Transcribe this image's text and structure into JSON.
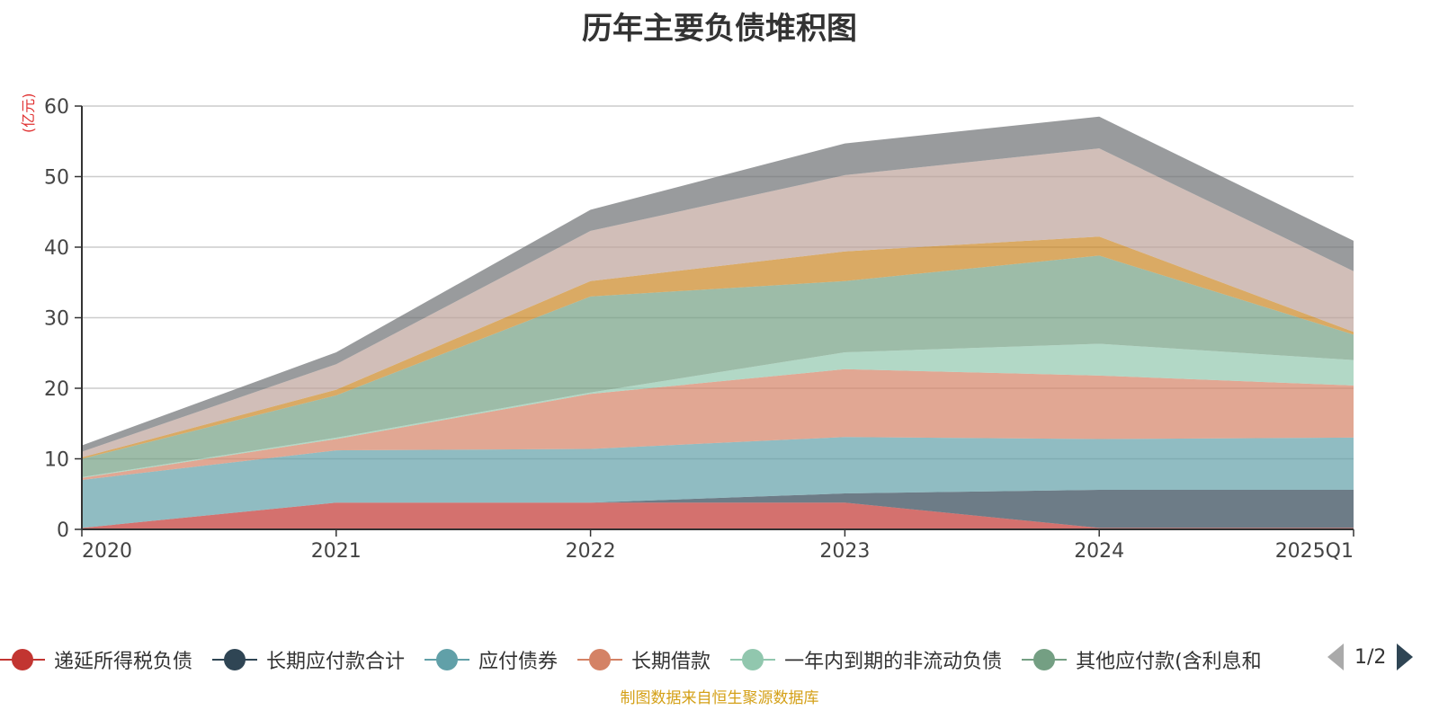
{
  "chart_data": {
    "type": "area",
    "stacked": true,
    "title": "历年主要负债堆积图",
    "ylabel": "(亿元)",
    "xlabel": "",
    "ylim": [
      0,
      60
    ],
    "yticks": [
      0,
      10,
      20,
      30,
      40,
      50,
      60
    ],
    "categories": [
      "2020",
      "2021",
      "2022",
      "2023",
      "2024",
      "2025Q1"
    ],
    "series": [
      {
        "name": "递延所得税负债",
        "color": "#c23531",
        "values": [
          0.2,
          3.8,
          3.8,
          3.8,
          0.2,
          0.2
        ]
      },
      {
        "name": "长期应付款合计",
        "color": "#2f4554",
        "values": [
          0.0,
          0.0,
          0.0,
          1.3,
          5.4,
          5.4
        ]
      },
      {
        "name": "应付债券",
        "color": "#61a0a8",
        "values": [
          6.8,
          7.4,
          7.6,
          8.0,
          7.2,
          7.4
        ]
      },
      {
        "name": "长期借款",
        "color": "#d48265",
        "values": [
          0.3,
          1.6,
          7.8,
          9.6,
          9.0,
          7.4
        ]
      },
      {
        "name": "一年内到期的非流动负债",
        "color": "#91c7ae",
        "values": [
          0.1,
          0.2,
          0.2,
          2.4,
          4.5,
          3.6
        ]
      },
      {
        "name": "其他应付款(含利息和",
        "color": "#749f83",
        "values": [
          2.6,
          6.0,
          13.6,
          10.1,
          12.5,
          3.6
        ]
      },
      {
        "name": "",
        "color": "#ca8622",
        "values": [
          0.2,
          0.8,
          2.2,
          4.2,
          2.7,
          0.4
        ]
      },
      {
        "name": "",
        "color": "#bda29a",
        "values": [
          0.8,
          3.6,
          7.1,
          10.8,
          12.5,
          8.6
        ]
      },
      {
        "name": "",
        "color": "#6e7074",
        "values": [
          0.9,
          1.7,
          3.0,
          4.5,
          4.5,
          4.3
        ]
      }
    ]
  },
  "legend": {
    "visible_count": 6,
    "page_text": "1/2"
  },
  "source_note": "制图数据来自恒生聚源数据库"
}
